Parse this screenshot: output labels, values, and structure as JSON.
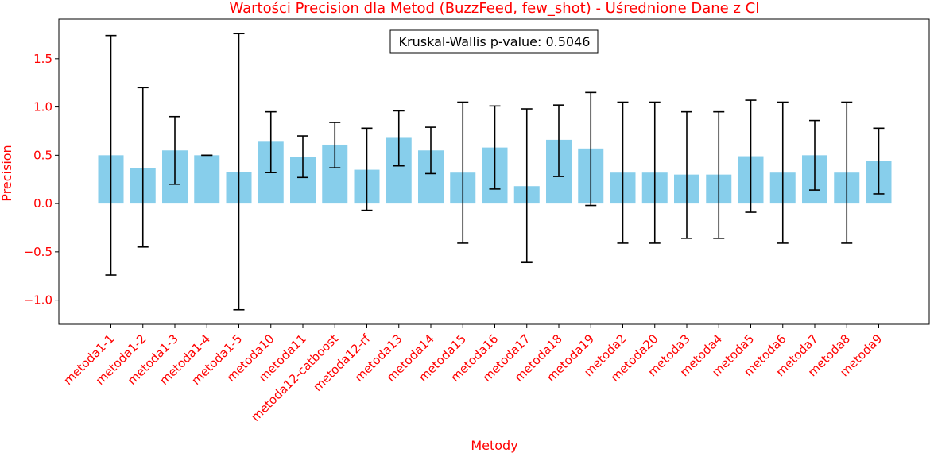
{
  "chart_data": {
    "type": "bar",
    "title": "Wartości Precision dla Metod (BuzzFeed, few_shot) - Uśrednione Dane z CI",
    "xlabel": "Metody",
    "ylabel": "Precision",
    "ylim": [
      -1.25,
      1.91
    ],
    "yticks": [
      -1.0,
      -0.5,
      0.0,
      0.5,
      1.0,
      1.5
    ],
    "ytick_labels": [
      "−1.0",
      "−0.5",
      "0.0",
      "0.5",
      "1.0",
      "1.5"
    ],
    "categories": [
      "metoda1-1",
      "metoda1-2",
      "metoda1-3",
      "metoda1-4",
      "metoda1-5",
      "metoda10",
      "metoda11",
      "metoda12-catboost",
      "metoda12-rf",
      "metoda13",
      "metoda14",
      "metoda15",
      "metoda16",
      "metoda17",
      "metoda18",
      "metoda19",
      "metoda2",
      "metoda20",
      "metoda3",
      "metoda4",
      "metoda5",
      "metoda6",
      "metoda7",
      "metoda8",
      "metoda9"
    ],
    "values": [
      0.5,
      0.37,
      0.55,
      0.5,
      0.33,
      0.64,
      0.48,
      0.61,
      0.35,
      0.68,
      0.55,
      0.32,
      0.58,
      0.18,
      0.66,
      0.57,
      0.32,
      0.32,
      0.3,
      0.3,
      0.49,
      0.32,
      0.5,
      0.32,
      0.44
    ],
    "ci_low": [
      -0.74,
      -0.45,
      0.2,
      0.5,
      -1.1,
      0.32,
      0.27,
      0.37,
      -0.07,
      0.39,
      0.31,
      -0.41,
      0.15,
      -0.61,
      0.28,
      -0.02,
      -0.41,
      -0.41,
      -0.36,
      -0.36,
      -0.09,
      -0.41,
      0.14,
      -0.41,
      0.1
    ],
    "ci_high": [
      1.74,
      1.2,
      0.9,
      0.5,
      1.76,
      0.95,
      0.7,
      0.84,
      0.78,
      0.96,
      0.79,
      1.05,
      1.01,
      0.98,
      1.02,
      1.15,
      1.05,
      1.05,
      0.95,
      0.95,
      1.07,
      1.05,
      0.86,
      1.05,
      0.78
    ],
    "bar_color": "#87ceeb",
    "error_color": "#000000",
    "label_color": "#ff0000",
    "annotation": "Kruskal-Wallis p-value: 0.5046",
    "grid": false,
    "legend": "none"
  }
}
